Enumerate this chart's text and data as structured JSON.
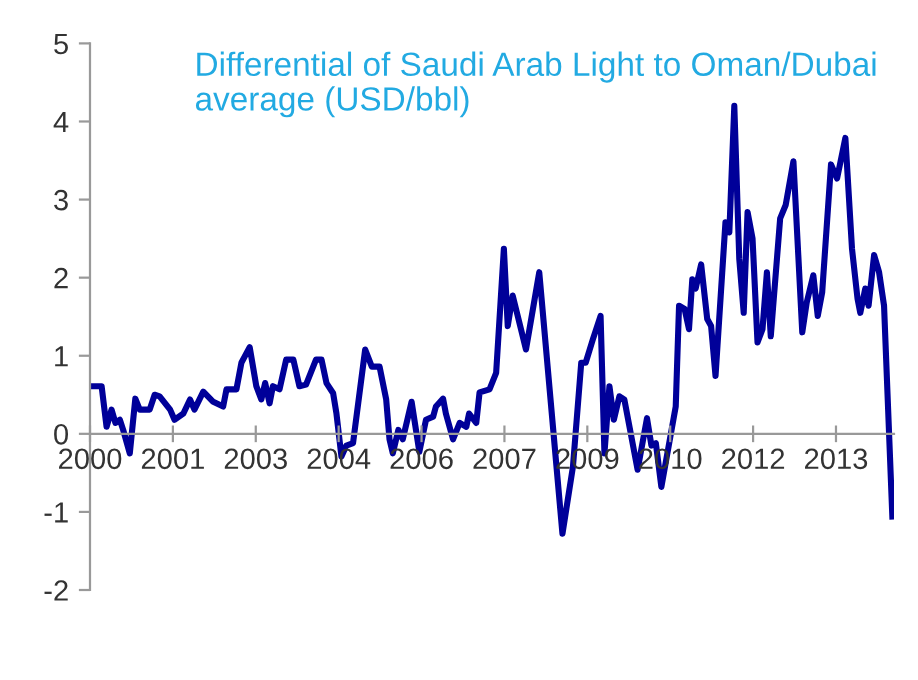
{
  "chart_data": {
    "type": "line",
    "title": "Differential of Saudi Arab Light to Oman/Dubai\naverage (USD/bbl)",
    "x": [
      2000.0,
      2000.21,
      2000.3,
      2000.39,
      2000.46,
      2000.54,
      2000.6,
      2000.72,
      2000.82,
      2000.9,
      2001.08,
      2001.17,
      2001.26,
      2001.45,
      2001.53,
      2001.69,
      2001.81,
      2001.89,
      2002.05,
      2002.23,
      2002.41,
      2002.47,
      2002.65,
      2002.74,
      2002.89,
      2003.01,
      2003.1,
      2003.17,
      2003.25,
      2003.31,
      2003.43,
      2003.55,
      2003.68,
      2003.79,
      2003.91,
      2004.09,
      2004.19,
      2004.28,
      2004.4,
      2004.46,
      2004.55,
      2004.64,
      2004.76,
      2004.98,
      2005.1,
      2005.24,
      2005.36,
      2005.42,
      2005.48,
      2005.58,
      2005.66,
      2005.82,
      2005.96,
      2006.08,
      2006.21,
      2006.26,
      2006.39,
      2006.44,
      2006.57,
      2006.69,
      2006.81,
      2006.86,
      2006.99,
      2007.05,
      2007.23,
      2007.35,
      2007.49,
      2007.56,
      2007.65,
      2007.89,
      2008.13,
      2008.55,
      2008.74,
      2008.89,
      2008.97,
      2009.1,
      2009.24,
      2009.31,
      2009.4,
      2009.48,
      2009.58,
      2009.67,
      2009.91,
      2010.08,
      2010.16,
      2010.24,
      2010.34,
      2010.6,
      2010.66,
      2010.76,
      2010.84,
      2010.9,
      2010.96,
      2011.06,
      2011.17,
      2011.24,
      2011.32,
      2011.5,
      2011.57,
      2011.66,
      2011.75,
      2011.83,
      2011.9,
      2011.99,
      2012.08,
      2012.17,
      2012.25,
      2012.32,
      2012.49,
      2012.59,
      2012.73,
      2012.89,
      2012.97,
      2013.09,
      2013.17,
      2013.25,
      2013.41,
      2013.52,
      2013.67,
      2013.79,
      2013.89,
      2013.94,
      2014.03,
      2014.09,
      2014.19,
      2014.28,
      2014.37,
      2014.52
    ],
    "series": [
      {
        "color": "#000099",
        "values": [
          0.61,
          0.61,
          0.09,
          0.31,
          0.14,
          0.18,
          0.05,
          -0.25,
          0.45,
          0.31,
          0.31,
          0.5,
          0.48,
          0.31,
          0.18,
          0.26,
          0.44,
          0.31,
          0.54,
          0.41,
          0.35,
          0.57,
          0.57,
          0.91,
          1.11,
          0.61,
          0.44,
          0.65,
          0.39,
          0.61,
          0.57,
          0.95,
          0.95,
          0.61,
          0.63,
          0.95,
          0.95,
          0.65,
          0.52,
          0.26,
          -0.29,
          -0.15,
          -0.12,
          1.08,
          0.86,
          0.86,
          0.44,
          -0.07,
          -0.25,
          0.05,
          -0.07,
          0.41,
          -0.23,
          0.18,
          0.22,
          0.35,
          0.45,
          0.26,
          -0.07,
          0.14,
          0.09,
          0.26,
          0.14,
          0.53,
          0.57,
          0.78,
          2.37,
          1.38,
          1.77,
          1.08,
          2.07,
          -1.28,
          -0.42,
          0.91,
          0.91,
          1.21,
          1.51,
          -0.25,
          0.61,
          0.18,
          0.48,
          0.44,
          -0.46,
          0.2,
          -0.15,
          -0.12,
          -0.68,
          0.35,
          1.64,
          1.6,
          1.34,
          1.98,
          1.86,
          2.17,
          1.47,
          1.38,
          0.74,
          2.71,
          2.58,
          4.2,
          2.24,
          1.55,
          2.84,
          2.5,
          1.17,
          1.34,
          2.07,
          1.25,
          2.76,
          2.93,
          3.49,
          1.3,
          1.68,
          2.03,
          1.51,
          1.81,
          3.45,
          3.27,
          3.79,
          2.37,
          1.73,
          1.55,
          1.86,
          1.64,
          2.29,
          2.07,
          1.64,
          -1.06
        ]
      }
    ],
    "xlim": [
      2000,
      2014.55
    ],
    "xticks": [
      2000,
      {
        "value": 2001.5,
        "label": "2001"
      },
      2003,
      {
        "value": 2004.5,
        "label": "2004"
      },
      2006,
      {
        "value": 2007.5,
        "label": "2007"
      },
      2009,
      {
        "value": 2010.5,
        "label": "2010"
      },
      2012,
      {
        "value": 2013.5,
        "label": "2013"
      }
    ],
    "ylim": [
      -2,
      5
    ],
    "yticks": [
      -2,
      -1,
      0,
      1,
      2,
      3,
      4,
      5
    ],
    "grid": false,
    "marker": "none",
    "line_style": "solid"
  }
}
